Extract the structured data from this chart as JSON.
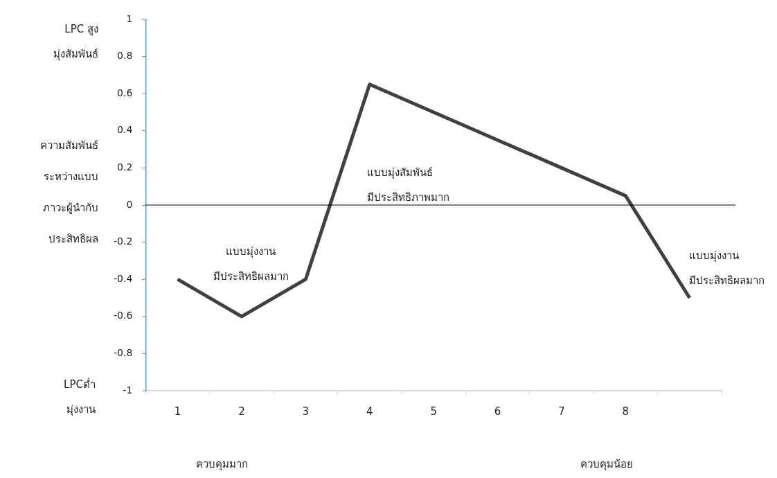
{
  "chart_data": {
    "type": "line",
    "ylabel": "ความสัมพันธ์\nระหว่างแบบ\nภาวะผู้นำกับ\nประสิทธิผล",
    "categories": [
      "1",
      "2",
      "3",
      "4",
      "5",
      "6",
      "7",
      "8",
      null
    ],
    "series": [
      {
        "color": "#404040",
        "values": [
          -0.4,
          -0.6,
          -0.4,
          0.65,
          0.5,
          0.35,
          0.2,
          0.05,
          -0.5
        ]
      }
    ],
    "ylim": [
      -1,
      1
    ],
    "yticks": [
      -1,
      -0.8,
      -0.6,
      -0.4,
      -0.2,
      0,
      0.2,
      0.4,
      0.6,
      0.8,
      1
    ],
    "grid": false,
    "legend": false,
    "marker": "none",
    "line_style": "solid",
    "ref_lines": [
      {
        "axis": "y",
        "value": 0,
        "color": "#000000"
      }
    ],
    "annotations": [
      "แบบมุ่งงาน\nมีประสิทธิผลมาก",
      "แบบมุ่งสัมพันธ์\nมีประสิทธิภาพมาก",
      "แบบมุ่งงาน\nมีประสิทธิผลมาก",
      "LPC สูง\nมุ่งสัมพันธ์",
      "LPCต่ำ\nมุ่งงาน",
      "ควบคุมมาก",
      "ควบคุมน้อย"
    ]
  }
}
